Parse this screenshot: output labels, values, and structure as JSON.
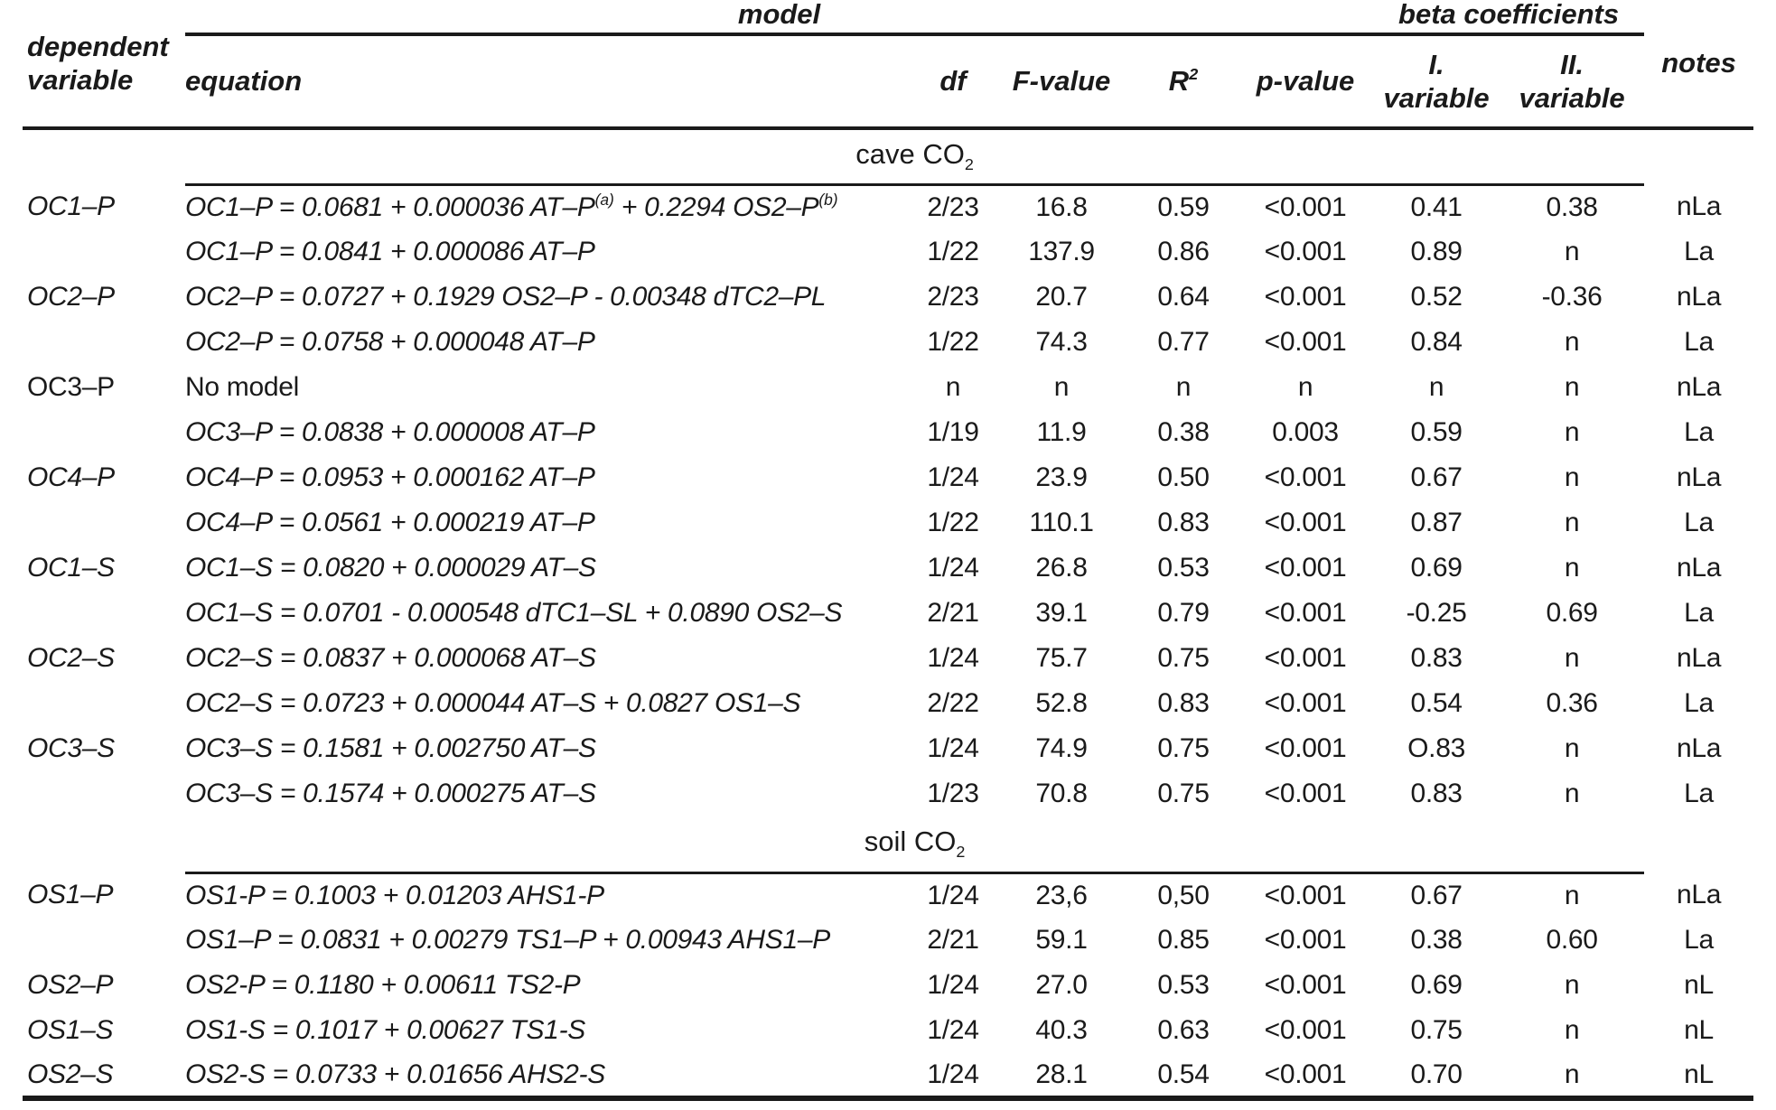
{
  "colors": {
    "text": "#1a1a1a",
    "background": "#ffffff",
    "rule": "#1a1a1a"
  },
  "spanners": {
    "model": "model",
    "beta": "beta coefficients"
  },
  "header": {
    "dependent_variable": "dependent\nvariable",
    "equation": "equation",
    "df": "df",
    "f_value": "F-value",
    "r_base": "R",
    "r_sup": "2",
    "p_value": "p-value",
    "var1": "I.\nvariable",
    "var2": "II.\nvariable",
    "notes": "notes"
  },
  "sections": [
    {
      "label": "cave CO",
      "label_sub": "2",
      "rows": [
        {
          "dep": "OC1–P",
          "eq": [
            "OC1–P = 0.0681 + 0.000036 AT–P",
            "(a)",
            " + 0.2294 OS2–P",
            "(b)"
          ],
          "df": "2/23",
          "f": "16.8",
          "r2": "0.59",
          "p": "<0.001",
          "b1": "0.41",
          "b2": "0.38",
          "notes": "nLa"
        },
        {
          "dep": "",
          "eq": [
            "OC1–P = 0.0841 + 0.000086 AT–P"
          ],
          "df": "1/22",
          "f": "137.9",
          "r2": "0.86",
          "p": "<0.001",
          "b1": "0.89",
          "b2": "n",
          "notes": "La"
        },
        {
          "dep": "OC2–P",
          "eq": [
            "OC2–P = 0.0727 + 0.1929 OS2–P - 0.00348 dTC2–PL"
          ],
          "df": "2/23",
          "f": "20.7",
          "r2": "0.64",
          "p": "<0.001",
          "b1": "0.52",
          "b2": "-0.36",
          "notes": "nLa"
        },
        {
          "dep": "",
          "eq": [
            "OC2–P = 0.0758 + 0.000048 AT–P"
          ],
          "df": "1/22",
          "f": "74.3",
          "r2": "0.77",
          "p": "<0.001",
          "b1": "0.84",
          "b2": "n",
          "notes": "La"
        },
        {
          "dep": "OC3–P",
          "dep_upright": true,
          "eq": [
            "No model"
          ],
          "eq_upright": true,
          "df": "n",
          "f": "n",
          "r2": "n",
          "p": "n",
          "b1": "n",
          "b2": "n",
          "notes": "nLa"
        },
        {
          "dep": "",
          "eq": [
            "OC3–P = 0.0838 + 0.000008 AT–P"
          ],
          "df": "1/19",
          "f": "11.9",
          "r2": "0.38",
          "p": "0.003",
          "b1": "0.59",
          "b2": "n",
          "notes": "La"
        },
        {
          "dep": "OC4–P",
          "eq": [
            "OC4–P = 0.0953 + 0.000162 AT–P"
          ],
          "df": "1/24",
          "f": "23.9",
          "r2": "0.50",
          "p": "<0.001",
          "b1": "0.67",
          "b2": "n",
          "notes": "nLa"
        },
        {
          "dep": "",
          "eq": [
            "OC4–P = 0.0561 + 0.000219 AT–P"
          ],
          "df": "1/22",
          "f": "110.1",
          "r2": "0.83",
          "p": "<0.001",
          "b1": "0.87",
          "b2": "n",
          "notes": "La"
        },
        {
          "dep": "OC1–S",
          "eq": [
            "OC1–S = 0.0820 + 0.000029 AT–S"
          ],
          "df": "1/24",
          "f": "26.8",
          "r2": "0.53",
          "p": "<0.001",
          "b1": "0.69",
          "b2": "n",
          "notes": "nLa"
        },
        {
          "dep": "",
          "eq": [
            "OC1–S = 0.0701 - 0.000548 dTC1–SL + 0.0890 OS2–S"
          ],
          "df": "2/21",
          "f": "39.1",
          "r2": "0.79",
          "p": "<0.001",
          "b1": "-0.25",
          "b2": "0.69",
          "notes": "La"
        },
        {
          "dep": "OC2–S",
          "eq": [
            "OC2–S = 0.0837 + 0.000068 AT–S"
          ],
          "df": "1/24",
          "f": "75.7",
          "r2": "0.75",
          "p": "<0.001",
          "b1": "0.83",
          "b2": "n",
          "notes": "nLa"
        },
        {
          "dep": "",
          "eq": [
            "OC2–S = 0.0723 + 0.000044 AT–S + 0.0827 OS1–S"
          ],
          "df": "2/22",
          "f": "52.8",
          "r2": "0.83",
          "p": "<0.001",
          "b1": "0.54",
          "b2": "0.36",
          "notes": "La"
        },
        {
          "dep": "OC3–S",
          "eq": [
            "OC3–S = 0.1581 + 0.002750 AT–S"
          ],
          "df": "1/24",
          "f": "74.9",
          "r2": "0.75",
          "p": "<0.001",
          "b1": "O.83",
          "b2": "n",
          "notes": "nLa"
        },
        {
          "dep": "",
          "eq": [
            "OC3–S = 0.1574 + 0.000275 AT–S"
          ],
          "df": "1/23",
          "f": "70.8",
          "r2": "0.75",
          "p": "<0.001",
          "b1": "0.83",
          "b2": "n",
          "notes": "La"
        }
      ]
    },
    {
      "label": "soil CO",
      "label_sub": "2",
      "rows": [
        {
          "dep": "OS1–P",
          "eq": [
            "OS1-P = 0.1003 + 0.01203 AHS1-P"
          ],
          "df": "1/24",
          "f": "23,6",
          "r2": "0,50",
          "p": "<0.001",
          "b1": "0.67",
          "b2": "n",
          "notes": "nLa"
        },
        {
          "dep": "",
          "eq": [
            "OS1–P = 0.0831 + 0.00279 TS1–P + 0.00943 AHS1–P"
          ],
          "df": "2/21",
          "f": "59.1",
          "r2": "0.85",
          "p": "<0.001",
          "b1": "0.38",
          "b2": "0.60",
          "notes": "La"
        },
        {
          "dep": "OS2–P",
          "eq": [
            "OS2-P = 0.1180 + 0.00611 TS2-P"
          ],
          "df": "1/24",
          "f": "27.0",
          "r2": "0.53",
          "p": "<0.001",
          "b1": "0.69",
          "b2": "n",
          "notes": "nL"
        },
        {
          "dep": "OS1–S",
          "eq": [
            "OS1-S = 0.1017 + 0.00627 TS1-S"
          ],
          "df": "1/24",
          "f": "40.3",
          "r2": "0.63",
          "p": "<0.001",
          "b1": "0.75",
          "b2": "n",
          "notes": "nL"
        },
        {
          "dep": "OS2–S",
          "eq": [
            "OS2-S = 0.0733 + 0.01656 AHS2-S"
          ],
          "df": "1/24",
          "f": "28.1",
          "r2": "0.54",
          "p": "<0.001",
          "b1": "0.70",
          "b2": "n",
          "notes": "nL"
        }
      ]
    }
  ]
}
